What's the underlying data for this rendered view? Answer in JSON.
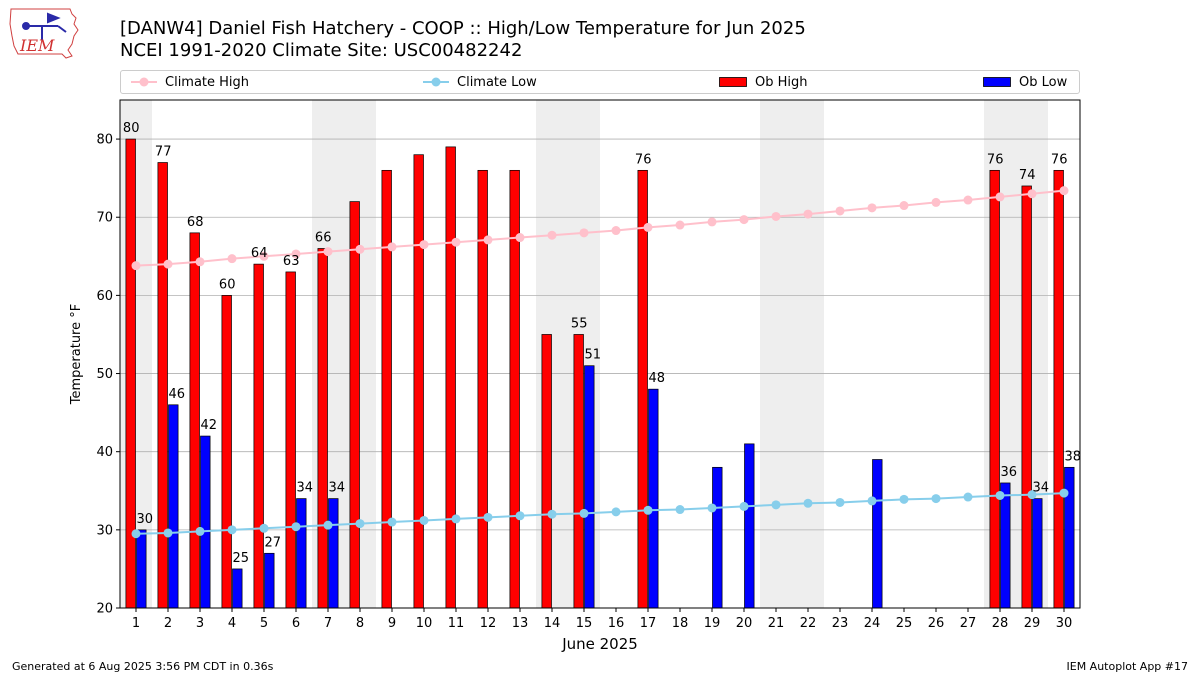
{
  "title_line1": "[DANW4] Daniel Fish Hatchery - COOP :: High/Low Temperature for Jun 2025",
  "title_line2": "NCEI 1991-2020 Climate Site: USC00482242",
  "footer_left": "Generated at 6 Aug 2025 3:56 PM CDT in 0.36s",
  "footer_right": "IEM Autoplot App #17",
  "logo_text": "IEM",
  "colors": {
    "climate_high": "#ffc0cb",
    "climate_low": "#87ceeb",
    "ob_high": "#ff0000",
    "ob_low": "#0000ff",
    "weekend_band": "#eeeeee",
    "grid": "#b0b0b0"
  },
  "chart_data": {
    "type": "bar",
    "xlabel": "June 2025",
    "ylabel": "Temperature °F",
    "ylim": [
      20,
      85
    ],
    "yticks": [
      20,
      30,
      40,
      50,
      60,
      70,
      80
    ],
    "grid": "horizontal",
    "legend_position": "top",
    "categories": [
      "1",
      "2",
      "3",
      "4",
      "5",
      "6",
      "7",
      "8",
      "9",
      "10",
      "11",
      "12",
      "13",
      "14",
      "15",
      "16",
      "17",
      "18",
      "19",
      "20",
      "21",
      "22",
      "23",
      "24",
      "25",
      "26",
      "27",
      "28",
      "29",
      "30"
    ],
    "shaded_days": [
      1,
      7,
      8,
      14,
      15,
      21,
      22,
      28,
      29
    ],
    "series": [
      {
        "name": "Climate High",
        "kind": "line",
        "values": [
          63.8,
          64.0,
          64.3,
          64.7,
          65.0,
          65.3,
          65.6,
          65.9,
          66.2,
          66.5,
          66.8,
          67.1,
          67.4,
          67.7,
          68.0,
          68.3,
          68.7,
          69.0,
          69.4,
          69.7,
          70.1,
          70.4,
          70.8,
          71.2,
          71.5,
          71.9,
          72.2,
          72.6,
          73.0,
          73.4
        ]
      },
      {
        "name": "Climate Low",
        "kind": "line",
        "values": [
          29.5,
          29.6,
          29.8,
          30.0,
          30.2,
          30.4,
          30.6,
          30.8,
          31.0,
          31.2,
          31.4,
          31.6,
          31.8,
          32.0,
          32.1,
          32.3,
          32.5,
          32.6,
          32.8,
          33.0,
          33.2,
          33.4,
          33.5,
          33.7,
          33.9,
          34.0,
          34.2,
          34.4,
          34.5,
          34.7
        ]
      },
      {
        "name": "Ob High",
        "kind": "bar",
        "values": [
          80,
          77,
          68,
          60,
          64,
          63,
          66,
          72,
          76,
          78,
          79,
          76,
          76,
          55,
          55,
          null,
          76,
          null,
          null,
          null,
          null,
          null,
          null,
          null,
          null,
          null,
          null,
          76,
          74,
          76
        ]
      },
      {
        "name": "Ob Low",
        "kind": "bar",
        "values": [
          30,
          46,
          42,
          25,
          27,
          34,
          34,
          null,
          null,
          null,
          null,
          null,
          null,
          null,
          51,
          null,
          48,
          null,
          38,
          41,
          null,
          null,
          null,
          39,
          null,
          null,
          null,
          36,
          34,
          38
        ]
      }
    ],
    "high_labels": [
      {
        "day": 1,
        "text": "80"
      },
      {
        "day": 2,
        "text": "77"
      },
      {
        "day": 3,
        "text": "68"
      },
      {
        "day": 4,
        "text": "60"
      },
      {
        "day": 5,
        "text": "64"
      },
      {
        "day": 6,
        "text": "63"
      },
      {
        "day": 7,
        "text": "66"
      },
      {
        "day": 15,
        "text": "55"
      },
      {
        "day": 17,
        "text": "76"
      },
      {
        "day": 28,
        "text": "76"
      },
      {
        "day": 29,
        "text": "74"
      },
      {
        "day": 30,
        "text": "76"
      }
    ],
    "low_labels": [
      {
        "day": 1,
        "text": "30"
      },
      {
        "day": 2,
        "text": "46"
      },
      {
        "day": 3,
        "text": "42"
      },
      {
        "day": 4,
        "text": "25"
      },
      {
        "day": 5,
        "text": "27"
      },
      {
        "day": 6,
        "text": "34"
      },
      {
        "day": 7,
        "text": "34"
      },
      {
        "day": 15,
        "text": "51"
      },
      {
        "day": 17,
        "text": "48"
      },
      {
        "day": 28,
        "text": "36"
      },
      {
        "day": 29,
        "text": "34"
      },
      {
        "day": 30,
        "text": "38"
      }
    ]
  }
}
